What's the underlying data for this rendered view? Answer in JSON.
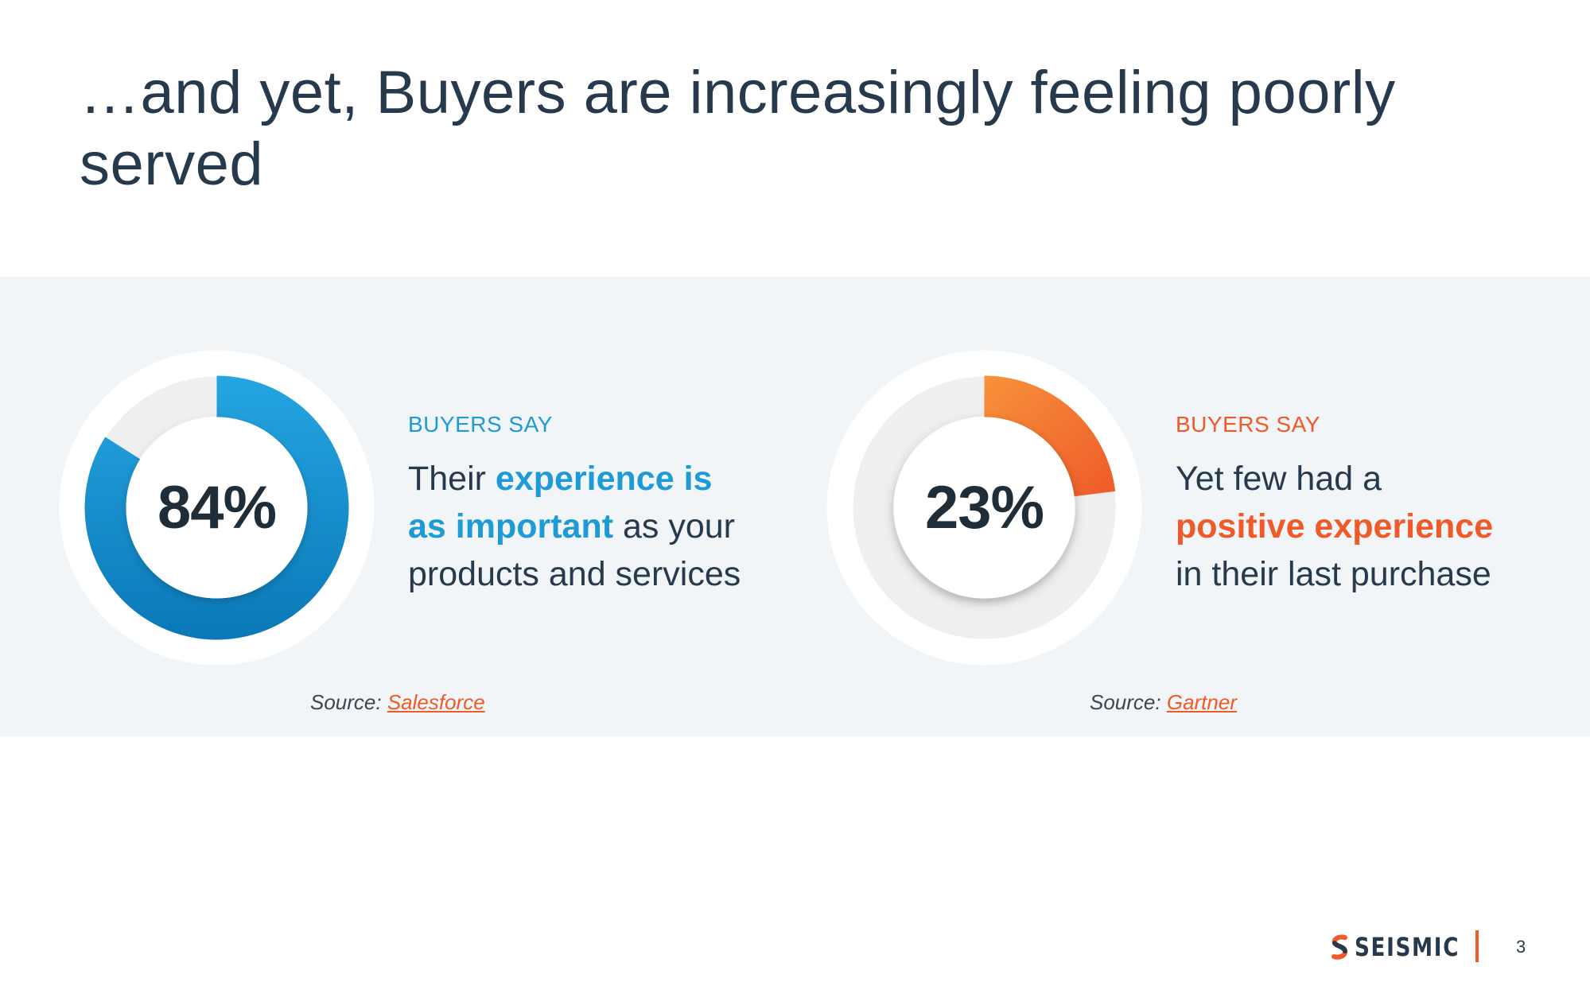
{
  "slide": {
    "title": "…and yet, Buyers are increasingly feeling poorly served",
    "page_number": "3"
  },
  "stats": [
    {
      "value": 84,
      "label": "84%",
      "eyebrow": "BUYERS SAY",
      "statement_pre": "Their ",
      "statement_highlight_line1": "experience is",
      "statement_highlight_line2": "as important",
      "statement_post_line2": " as your",
      "statement_line3": "products and services",
      "source_label": "Source:",
      "source_link": "Salesforce",
      "color": "#1e9ad6"
    },
    {
      "value": 23,
      "label": "23%",
      "eyebrow": "BUYERS SAY",
      "statement_line1": "Yet few had a",
      "statement_highlight": "positive experience",
      "statement_line3": "in their last purchase",
      "source_label": "Source:",
      "source_link": "Gartner",
      "color": "#f05a28"
    }
  ],
  "footer": {
    "brand": "SEISMIC",
    "logo_icon": "seismic-logo-icon"
  },
  "colors": {
    "blue": "#1e9ad6",
    "orange": "#f05a28",
    "text": "#26394d",
    "band": "#f2f5f7"
  }
}
